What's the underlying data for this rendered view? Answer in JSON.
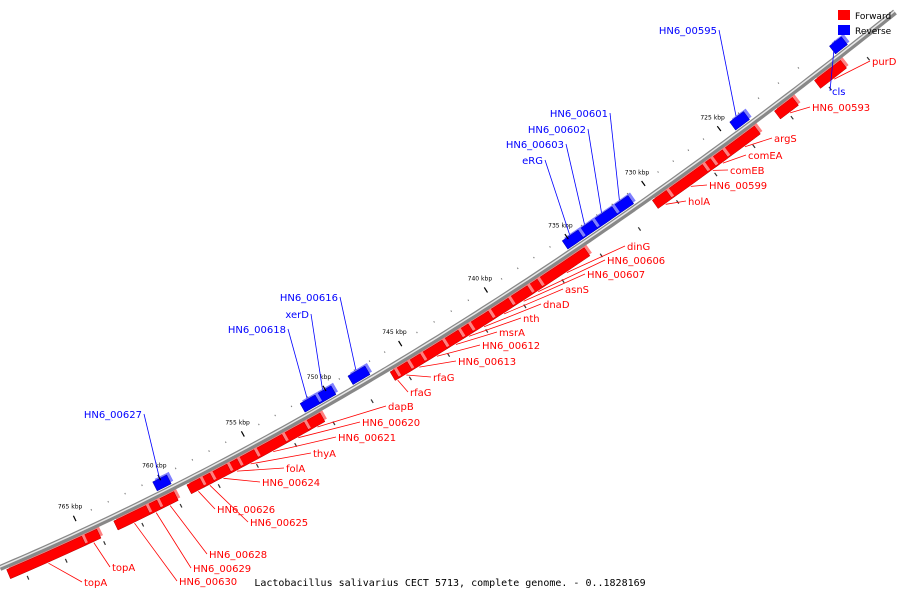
{
  "caption": "Lactobacillus salivarius CECT 5713, complete genome. - 0..1828169",
  "legend": [
    {
      "label": "Forward",
      "color": "#ff0000"
    },
    {
      "label": "Reverse",
      "color": "#0000ff"
    }
  ],
  "colors": {
    "forward": "#ff0000",
    "reverse": "#0000ff",
    "backbone": "#888888"
  },
  "ticks": [
    "725 kbp",
    "730 kbp",
    "735 kbp",
    "740 kbp",
    "745 kbp",
    "750 kbp",
    "755 kbp",
    "760 kbp",
    "765 kbp"
  ],
  "genes": [
    {
      "name": "purD",
      "strand": "forward"
    },
    {
      "name": "cls",
      "strand": "reverse"
    },
    {
      "name": "HN6_00593",
      "strand": "forward"
    },
    {
      "name": "HN6_00595",
      "strand": "reverse"
    },
    {
      "name": "argS",
      "strand": "forward"
    },
    {
      "name": "comEA",
      "strand": "forward"
    },
    {
      "name": "comEB",
      "strand": "forward"
    },
    {
      "name": "HN6_00599",
      "strand": "forward"
    },
    {
      "name": "holA",
      "strand": "forward"
    },
    {
      "name": "HN6_00601",
      "strand": "reverse"
    },
    {
      "name": "HN6_00602",
      "strand": "reverse"
    },
    {
      "name": "HN6_00603",
      "strand": "reverse"
    },
    {
      "name": "eRG",
      "strand": "reverse"
    },
    {
      "name": "dinG",
      "strand": "forward"
    },
    {
      "name": "HN6_00606",
      "strand": "forward"
    },
    {
      "name": "HN6_00607",
      "strand": "forward"
    },
    {
      "name": "asnS",
      "strand": "forward"
    },
    {
      "name": "dnaD",
      "strand": "forward"
    },
    {
      "name": "nth",
      "strand": "forward"
    },
    {
      "name": "msrA",
      "strand": "forward"
    },
    {
      "name": "HN6_00612",
      "strand": "forward"
    },
    {
      "name": "HN6_00613",
      "strand": "forward"
    },
    {
      "name": "rfaG",
      "strand": "forward"
    },
    {
      "name": "rfaG",
      "strand": "forward"
    },
    {
      "name": "HN6_00616",
      "strand": "reverse"
    },
    {
      "name": "xerD",
      "strand": "reverse"
    },
    {
      "name": "HN6_00618",
      "strand": "reverse"
    },
    {
      "name": "dapB",
      "strand": "forward"
    },
    {
      "name": "HN6_00620",
      "strand": "forward"
    },
    {
      "name": "HN6_00621",
      "strand": "forward"
    },
    {
      "name": "thyA",
      "strand": "forward"
    },
    {
      "name": "folA",
      "strand": "forward"
    },
    {
      "name": "HN6_00624",
      "strand": "forward"
    },
    {
      "name": "HN6_00625",
      "strand": "forward"
    },
    {
      "name": "HN6_00626",
      "strand": "forward"
    },
    {
      "name": "HN6_00627",
      "strand": "reverse"
    },
    {
      "name": "HN6_00628",
      "strand": "forward"
    },
    {
      "name": "HN6_00629",
      "strand": "forward"
    },
    {
      "name": "HN6_00630",
      "strand": "forward"
    },
    {
      "name": "topA",
      "strand": "forward"
    },
    {
      "name": "topA",
      "strand": "forward"
    }
  ]
}
